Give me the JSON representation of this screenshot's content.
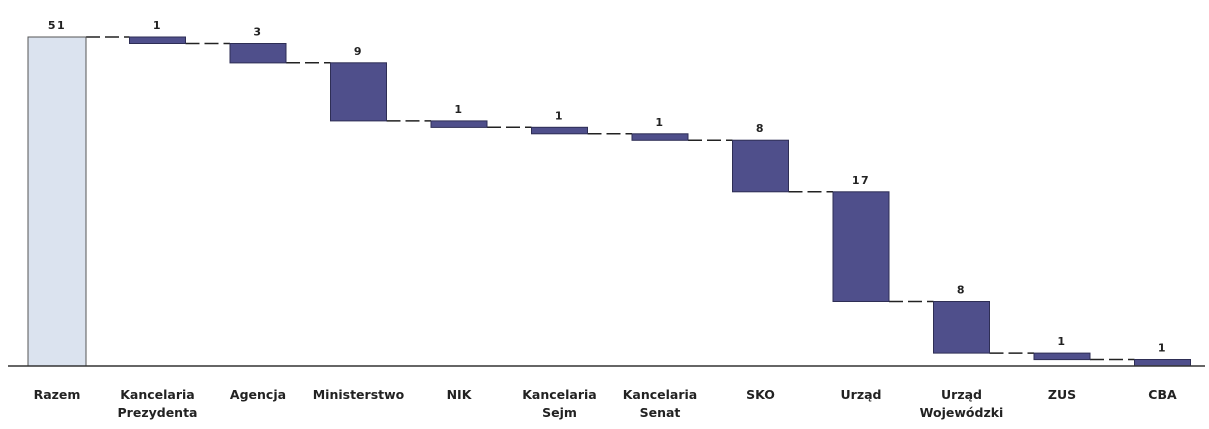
{
  "chart_data": {
    "type": "waterfall",
    "categories": [
      "Razem",
      "Kancelaria Prezydenta",
      "Agencja",
      "Ministerstwo",
      "NIK",
      "Kancelaria Sejm",
      "Kancelaria Senat",
      "SKO",
      "Urząd",
      "Urząd Wojewódzki",
      "ZUS",
      "CBA"
    ],
    "category_lines": [
      [
        "Razem"
      ],
      [
        "Kancelaria",
        "Prezydenta"
      ],
      [
        "Agencja"
      ],
      [
        "Ministerstwo"
      ],
      [
        "NIK"
      ],
      [
        "Kancelaria",
        "Sejm"
      ],
      [
        "Kancelaria",
        "Senat"
      ],
      [
        "SKO"
      ],
      [
        "Urząd"
      ],
      [
        "Urząd",
        "Wojewódzki"
      ],
      [
        "ZUS"
      ],
      [
        "CBA"
      ]
    ],
    "values": [
      51,
      1,
      3,
      9,
      1,
      1,
      1,
      8,
      17,
      8,
      1,
      1
    ],
    "total_index": 0,
    "ylim": [
      0,
      51
    ],
    "grid": false,
    "colors": {
      "total_fill": "#dbe3ef",
      "total_stroke": "#555555",
      "bar_fill": "#4f4f8b",
      "bar_stroke": "#2e2e55",
      "connector": "#222222",
      "axis": "#333333",
      "text": "#222222"
    }
  }
}
